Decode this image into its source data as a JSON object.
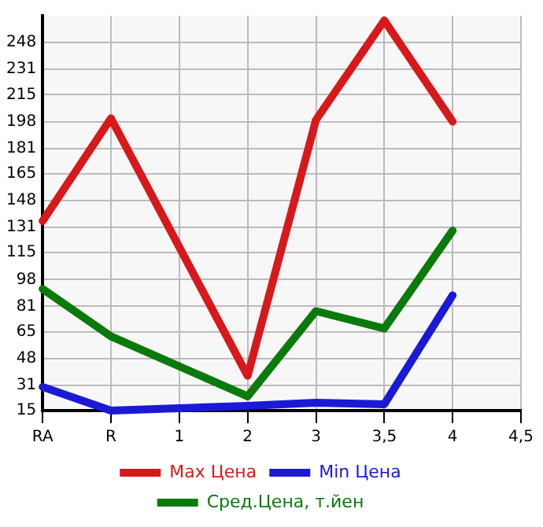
{
  "chart_data": {
    "type": "line",
    "categories": [
      "RA",
      "R",
      "1",
      "2",
      "3",
      "3,5",
      "4",
      "4,5"
    ],
    "series": [
      {
        "name": "Max Цена",
        "color": "#d7191c",
        "values": [
          135,
          200,
          null,
          37,
          199,
          262,
          198,
          null
        ]
      },
      {
        "name": "Min Цена",
        "color": "#1a1ad6",
        "values": [
          30,
          15,
          null,
          18,
          20,
          19,
          88,
          null
        ]
      },
      {
        "name": "Сред.Цена, т.йен",
        "color": "#0a7a0a",
        "values": [
          92,
          62,
          null,
          24,
          78,
          67,
          129,
          null
        ]
      }
    ],
    "ylim": [
      15,
      265
    ],
    "yticks": [
      15,
      31,
      48,
      65,
      81,
      98,
      115,
      131,
      148,
      165,
      181,
      198,
      215,
      231,
      248
    ],
    "grid": true,
    "legend": "bottom",
    "marker": "none",
    "line_style": "solid"
  }
}
